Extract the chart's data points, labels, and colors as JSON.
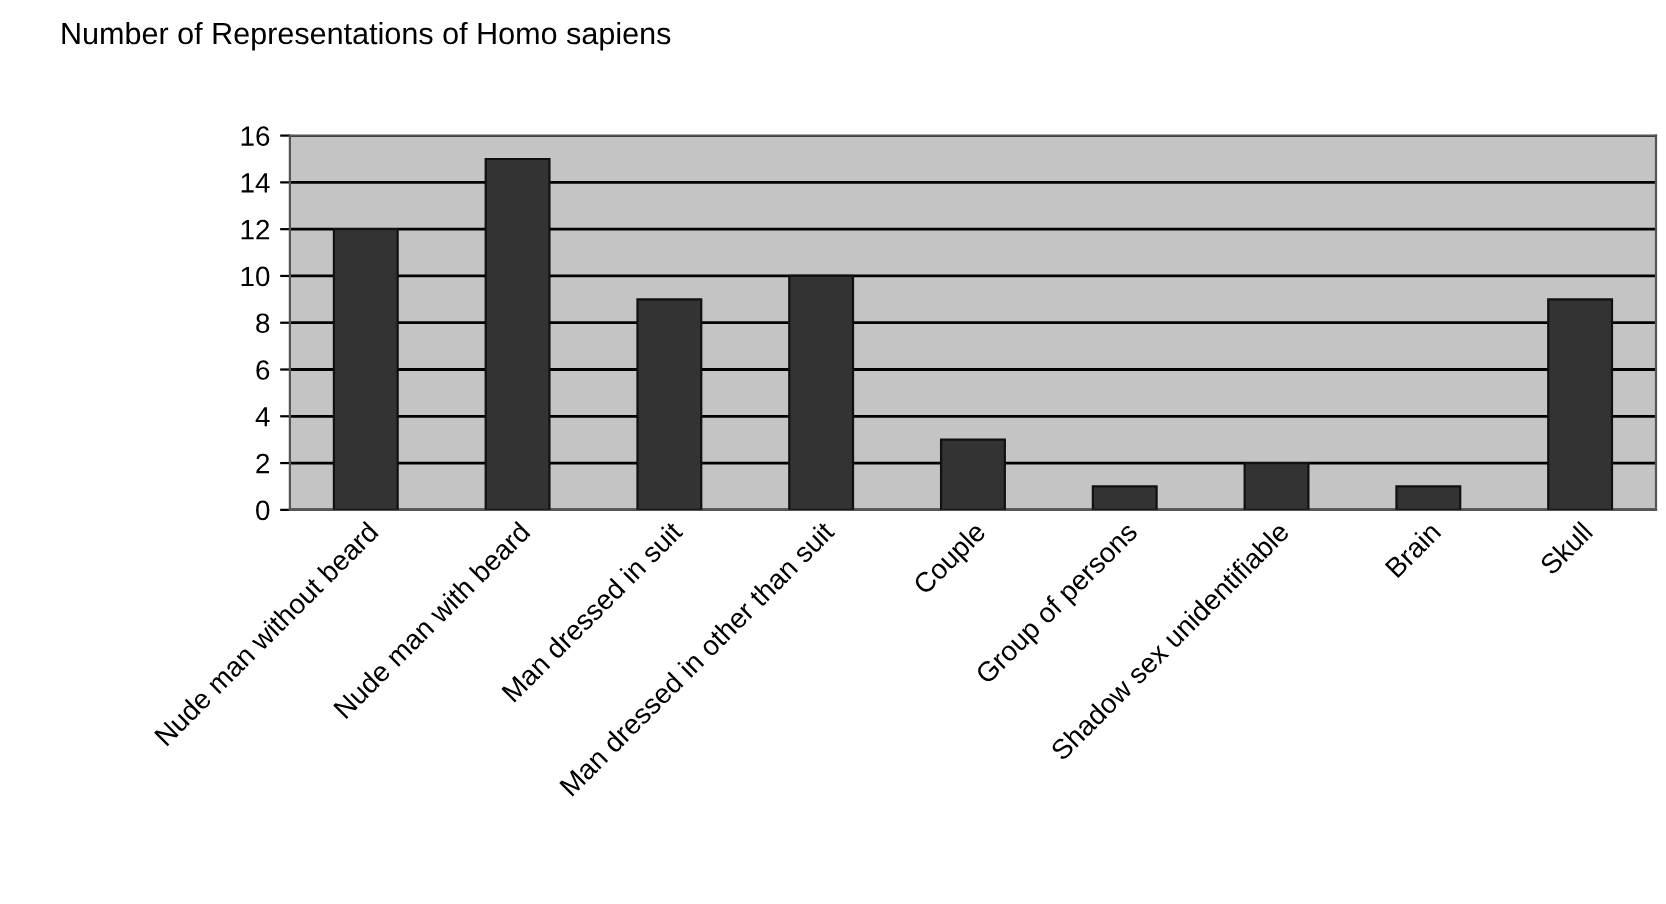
{
  "chart_data": {
    "type": "bar",
    "title": "Number of Representations of Homo sapiens",
    "categories": [
      "Nude man without beard",
      "Nude man with beard",
      "Man dressed in suit",
      "Man dressed in other than suit",
      "Couple",
      "Group of persons",
      "Shadow sex unidentifiable",
      "Brain",
      "Skull"
    ],
    "values": [
      12,
      15,
      9,
      10,
      3,
      1,
      2,
      1,
      9
    ],
    "color": "#333333",
    "ylim": [
      0,
      16
    ],
    "yticks": [
      0,
      2,
      4,
      6,
      8,
      10,
      12,
      14,
      16
    ],
    "grid": "y",
    "legend": false
  }
}
